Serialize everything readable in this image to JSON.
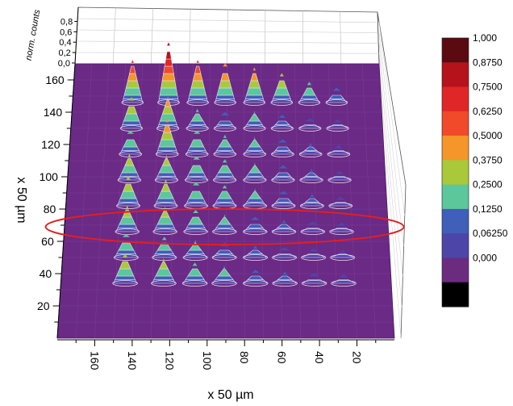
{
  "chart_data": {
    "type": "surface-3d",
    "title": "",
    "xlabel": "x 50 µm",
    "ylabel": "x 50 µm",
    "zlabel": "norm. counts",
    "x_ticks": [
      "160",
      "140",
      "120",
      "100",
      "80",
      "60",
      "40",
      "20"
    ],
    "x_tick_values": [
      160,
      140,
      120,
      100,
      80,
      60,
      40,
      20
    ],
    "y_ticks": [
      "20",
      "40",
      "60",
      "80",
      "100",
      "120",
      "140",
      "160"
    ],
    "y_tick_values": [
      20,
      40,
      60,
      80,
      100,
      120,
      140,
      160
    ],
    "z_ticks": [
      "0,0",
      "0,2",
      "0,4",
      "0,6",
      "0,8"
    ],
    "z_tick_values": [
      0,
      0.2,
      0.4,
      0.6,
      0.8
    ],
    "xlim": [
      0,
      180
    ],
    "ylim": [
      0,
      170
    ],
    "zlim": [
      0,
      1
    ],
    "colorbar": {
      "labels": [
        "1,000",
        "0,8750",
        "0,7500",
        "0,6250",
        "0,5000",
        "0,3750",
        "0,2500",
        "0,1250",
        "0,06250",
        "0,000"
      ],
      "colors": [
        "#5a0a10",
        "#b5121b",
        "#e02626",
        "#f04a2a",
        "#f5962a",
        "#a9c93a",
        "#5cc79a",
        "#3f5fb8",
        "#4e45a8",
        "#6b2c80",
        "#000000"
      ]
    },
    "surface_color": "#6a2a86",
    "grid": true,
    "annotation": {
      "shape": "ellipse",
      "color": "#e02020",
      "highlighted_row_y": 66
    },
    "peak_columns_x": [
      145,
      124,
      107,
      91,
      74,
      58,
      42,
      26
    ],
    "peak_rows_y": [
      34,
      50,
      66,
      82,
      98,
      114,
      130,
      146
    ],
    "peaks": [
      [
        0.45,
        0.38,
        0.3,
        0.25,
        0.18,
        0.15,
        0.12,
        0.1
      ],
      [
        0.35,
        0.3,
        0.25,
        0.2,
        0.15,
        0.12,
        0.1,
        0.08
      ],
      [
        0.4,
        0.38,
        0.32,
        0.25,
        0.2,
        0.15,
        0.12,
        0.1
      ],
      [
        0.45,
        0.4,
        0.35,
        0.3,
        0.25,
        0.2,
        0.15,
        0.1
      ],
      [
        0.4,
        0.38,
        0.35,
        0.3,
        0.25,
        0.2,
        0.14,
        0.1
      ],
      [
        0.35,
        0.55,
        0.35,
        0.28,
        0.25,
        0.2,
        0.14,
        0.1
      ],
      [
        0.48,
        0.5,
        0.28,
        0.22,
        0.25,
        0.18,
        0.12,
        0.1
      ],
      [
        0.68,
        0.98,
        0.68,
        0.62,
        0.55,
        0.45,
        0.3,
        0.2
      ]
    ]
  }
}
